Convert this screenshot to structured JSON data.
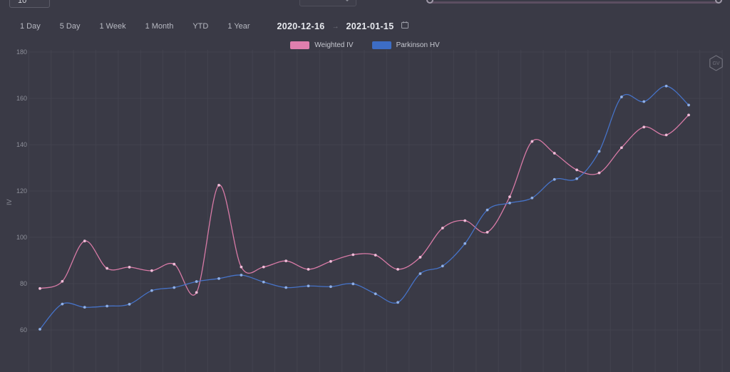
{
  "top_bar": {
    "value_input": "10"
  },
  "toolbar": {
    "ranges": [
      "1 Day",
      "5 Day",
      "1 Week",
      "1 Month",
      "YTD",
      "1 Year"
    ],
    "date_from": "2020-12-16",
    "date_separator": "→",
    "date_to": "2021-01-15"
  },
  "legend": {
    "items": [
      {
        "label": "Weighted IV",
        "color": "#df7fae"
      },
      {
        "label": "Parkinson HV",
        "color": "#3d6dc5"
      }
    ]
  },
  "watermark": {
    "badge_text": "GV"
  },
  "colors": {
    "background": "#3a3a46",
    "gridline": "#43434f",
    "axis_text": "#8d8f99",
    "weighted_iv_line": "#d77aa6",
    "weighted_iv_marker": "#f0bcd8",
    "parkinson_hv_line": "#4673c8",
    "parkinson_hv_marker": "#8fafe6"
  },
  "chart_data": {
    "type": "line",
    "title": "",
    "xlabel": "",
    "ylabel": "IV",
    "x_axis_note": "daily points, 2020-12-16 to 2021-01-15 (x labels cut off)",
    "x": [
      1,
      2,
      3,
      4,
      5,
      6,
      7,
      8,
      9,
      10,
      11,
      12,
      13,
      14,
      15,
      16,
      17,
      18,
      19,
      20,
      21,
      22,
      23,
      24,
      25,
      26,
      27,
      28,
      29,
      30
    ],
    "yticks": [
      180,
      160,
      140,
      120,
      100,
      80,
      60
    ],
    "ylim_visible": [
      42,
      181
    ],
    "grid": true,
    "legend_position": "top-center",
    "series": [
      {
        "name": "Weighted IV",
        "color": "#d77aa6",
        "values": [
          77.9,
          81.0,
          98.4,
          86.6,
          87.1,
          85.6,
          88.4,
          76.2,
          122.5,
          87.2,
          87.2,
          89.8,
          86.2,
          89.6,
          92.5,
          92.3,
          86.2,
          91.4,
          104.0,
          107.2,
          102.2,
          117.5,
          141.4,
          136.3,
          129.1,
          127.8,
          138.7,
          147.6,
          144.2,
          152.8
        ]
      },
      {
        "name": "Parkinson HV",
        "color": "#4673c8",
        "values": [
          60.3,
          71.2,
          69.8,
          70.3,
          71.1,
          77.0,
          78.3,
          80.9,
          82.2,
          83.7,
          80.7,
          78.3,
          79.0,
          78.7,
          79.9,
          75.6,
          71.9,
          84.3,
          87.6,
          97.3,
          111.8,
          114.8,
          117.0,
          125.0,
          125.3,
          137.1,
          160.6,
          158.6,
          165.3,
          157.1
        ]
      }
    ]
  }
}
